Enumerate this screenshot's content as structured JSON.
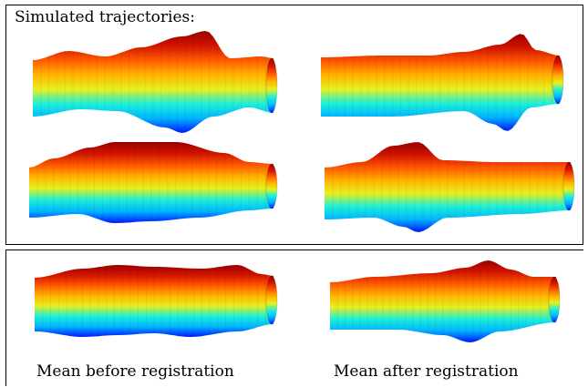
{
  "header": {
    "title": "Simulated trajectories:"
  },
  "captions": {
    "mean_before": "Mean before registration",
    "mean_after": "Mean after registration"
  },
  "colormap": {
    "name": "jet",
    "stops": [
      "#0018ff",
      "#00b4ff",
      "#1ef0d8",
      "#e6f01e",
      "#ffb400",
      "#ff5a00",
      "#d21400",
      "#9a0000"
    ]
  },
  "figures": [
    {
      "name": "trajectory-1"
    },
    {
      "name": "trajectory-2"
    },
    {
      "name": "trajectory-3"
    },
    {
      "name": "trajectory-4"
    },
    {
      "name": "mean-before"
    },
    {
      "name": "mean-after"
    }
  ]
}
